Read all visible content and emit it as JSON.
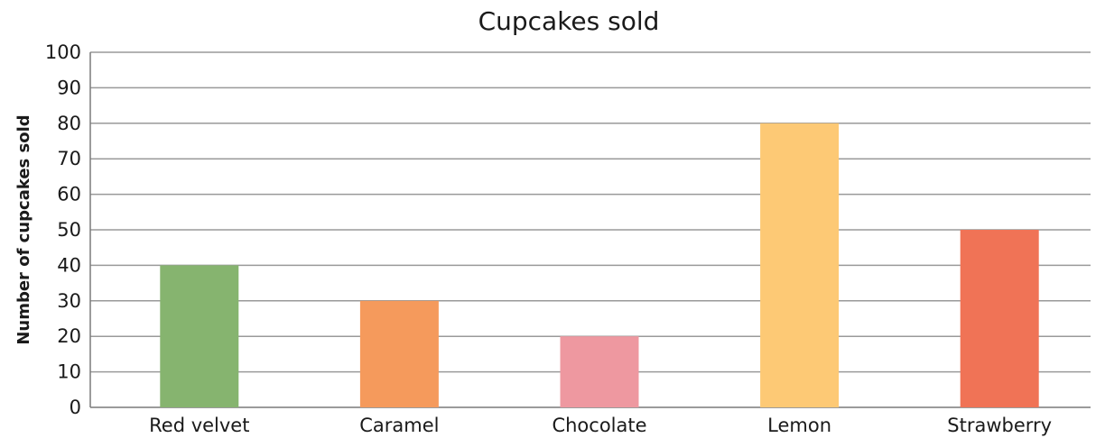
{
  "chart_data": {
    "type": "bar",
    "title": "Cupcakes sold",
    "xlabel": "",
    "ylabel": "Number of cupcakes sold",
    "categories": [
      "Red velvet",
      "Caramel",
      "Chocolate",
      "Lemon",
      "Strawberry"
    ],
    "values": [
      40,
      30,
      20,
      80,
      50
    ],
    "colors": [
      "#86b46f",
      "#f59a5c",
      "#ee98a0",
      "#fdc975",
      "#f07356"
    ],
    "ylim": [
      0,
      100
    ],
    "yticks": [
      0,
      10,
      20,
      30,
      40,
      50,
      60,
      70,
      80,
      90,
      100
    ],
    "grid": true,
    "legend": "none"
  }
}
